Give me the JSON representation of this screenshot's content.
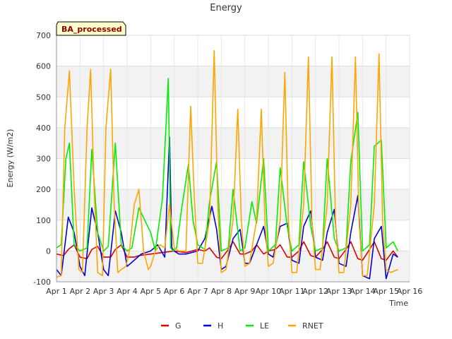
{
  "chart_data": {
    "type": "line",
    "title": "Energy",
    "badge": "BA_processed",
    "xlabel": "Time",
    "ylabel": "Energy (W/m2)",
    "ylim": [
      -100,
      700
    ],
    "xlim": [
      1,
      16
    ],
    "y_ticks": [
      -100,
      0,
      100,
      200,
      300,
      400,
      500,
      600,
      700
    ],
    "x_ticks": [
      {
        "value": 1,
        "label": "Apr 1"
      },
      {
        "value": 2,
        "label": "Apr 2"
      },
      {
        "value": 3,
        "label": "Apr 3"
      },
      {
        "value": 4,
        "label": "Apr 4"
      },
      {
        "value": 5,
        "label": "Apr 5"
      },
      {
        "value": 6,
        "label": "Apr 6"
      },
      {
        "value": 7,
        "label": "Apr 7"
      },
      {
        "value": 8,
        "label": "Apr 8"
      },
      {
        "value": 9,
        "label": "Apr 9"
      },
      {
        "value": 10,
        "label": "Apr 10"
      },
      {
        "value": 11,
        "label": "Apr 11"
      },
      {
        "value": 12,
        "label": "Apr 12"
      },
      {
        "value": 13,
        "label": "Apr 13"
      },
      {
        "value": 14,
        "label": "Apr 14"
      },
      {
        "value": 15,
        "label": "Apr 15"
      },
      {
        "value": 16,
        "label": "Apr 16"
      }
    ],
    "grid": true,
    "legend_position": "bottom-center",
    "x_unit": "day of April",
    "series": [
      {
        "name": "G",
        "color": "#dd0000",
        "x": [
          1.0,
          1.3,
          1.5,
          1.75,
          2.0,
          2.3,
          2.5,
          2.75,
          3.0,
          3.3,
          3.5,
          3.75,
          4.0,
          4.3,
          4.5,
          5.0,
          5.5,
          6.0,
          6.5,
          7.0,
          7.3,
          7.5,
          7.8,
          8.0,
          8.3,
          8.5,
          8.8,
          9.0,
          9.3,
          9.5,
          9.8,
          10.0,
          10.3,
          10.5,
          10.8,
          11.0,
          11.3,
          11.5,
          11.8,
          12.0,
          12.3,
          12.5,
          12.8,
          13.0,
          13.3,
          13.5,
          13.8,
          14.0,
          14.3,
          14.5,
          14.8,
          15.0,
          15.3,
          15.5
        ],
        "y": [
          -10,
          -15,
          5,
          20,
          -20,
          -25,
          5,
          15,
          -20,
          -20,
          5,
          20,
          -20,
          -20,
          -15,
          -10,
          -5,
          0,
          -5,
          5,
          0,
          10,
          -20,
          -25,
          5,
          30,
          -10,
          -10,
          0,
          20,
          -10,
          0,
          5,
          20,
          -20,
          -20,
          0,
          30,
          -15,
          -20,
          5,
          30,
          -20,
          -25,
          5,
          30,
          -25,
          -30,
          5,
          30,
          -25,
          -30,
          0,
          -20
        ]
      },
      {
        "name": "H",
        "color": "#0000dd",
        "x": [
          1.0,
          1.2,
          1.5,
          1.75,
          2.0,
          2.2,
          2.5,
          2.75,
          3.0,
          3.2,
          3.5,
          3.75,
          4.0,
          4.3,
          4.6,
          5.0,
          5.3,
          5.6,
          5.8,
          5.9,
          6.0,
          6.2,
          6.5,
          7.0,
          7.3,
          7.6,
          7.8,
          8.0,
          8.2,
          8.5,
          8.8,
          9.0,
          9.2,
          9.5,
          9.8,
          10.0,
          10.2,
          10.5,
          10.8,
          11.0,
          11.3,
          11.5,
          11.8,
          12.0,
          12.3,
          12.5,
          12.8,
          13.0,
          13.3,
          13.5,
          13.8,
          14.0,
          14.3,
          14.5,
          14.8,
          15.0,
          15.3,
          15.5
        ],
        "y": [
          -60,
          -80,
          110,
          60,
          -50,
          -80,
          140,
          60,
          -60,
          -80,
          130,
          60,
          -50,
          -30,
          -10,
          0,
          20,
          -20,
          370,
          10,
          0,
          -10,
          -10,
          0,
          40,
          145,
          70,
          -60,
          -50,
          40,
          70,
          -40,
          -40,
          20,
          80,
          -10,
          -20,
          80,
          90,
          -30,
          -40,
          80,
          130,
          -20,
          -30,
          60,
          135,
          -40,
          -50,
          60,
          180,
          -80,
          -90,
          40,
          80,
          -90,
          -10,
          -20
        ]
      },
      {
        "name": "LE",
        "color": "#00ee00",
        "x": [
          1.0,
          1.2,
          1.4,
          1.55,
          1.75,
          2.0,
          2.3,
          2.5,
          2.75,
          3.0,
          3.2,
          3.5,
          3.75,
          4.0,
          4.2,
          4.5,
          4.75,
          5.0,
          5.2,
          5.5,
          5.75,
          5.85,
          5.95,
          6.1,
          6.3,
          6.6,
          6.8,
          7.0,
          7.3,
          7.5,
          7.8,
          8.0,
          8.3,
          8.5,
          8.8,
          9.0,
          9.3,
          9.5,
          9.8,
          10.0,
          10.3,
          10.5,
          10.8,
          11.0,
          11.3,
          11.5,
          11.8,
          12.0,
          12.3,
          12.5,
          12.8,
          13.0,
          13.3,
          13.5,
          13.8,
          14.0,
          14.3,
          14.5,
          14.8,
          15.0,
          15.3,
          15.5
        ],
        "y": [
          10,
          20,
          300,
          350,
          20,
          0,
          10,
          330,
          60,
          0,
          15,
          350,
          20,
          0,
          10,
          140,
          100,
          60,
          0,
          170,
          560,
          10,
          0,
          10,
          130,
          280,
          100,
          20,
          5,
          160,
          290,
          0,
          10,
          200,
          0,
          10,
          160,
          90,
          300,
          0,
          20,
          270,
          80,
          0,
          20,
          290,
          80,
          0,
          10,
          300,
          40,
          0,
          10,
          290,
          450,
          0,
          20,
          340,
          360,
          10,
          30,
          0
        ]
      },
      {
        "name": "RNET",
        "color": "#ffa500",
        "x": [
          1.0,
          1.2,
          1.35,
          1.55,
          1.75,
          1.95,
          2.1,
          2.3,
          2.45,
          2.6,
          2.75,
          2.95,
          3.1,
          3.3,
          3.45,
          3.6,
          3.75,
          3.95,
          4.1,
          4.3,
          4.5,
          4.7,
          4.9,
          5.0,
          5.2,
          5.4,
          5.6,
          5.8,
          6.0,
          6.2,
          6.5,
          6.7,
          6.85,
          7.0,
          7.2,
          7.5,
          7.7,
          7.85,
          8.0,
          8.2,
          8.5,
          8.7,
          8.85,
          9.0,
          9.2,
          9.5,
          9.7,
          9.85,
          10.0,
          10.2,
          10.5,
          10.7,
          10.85,
          11.0,
          11.2,
          11.5,
          11.7,
          11.85,
          12.0,
          12.2,
          12.5,
          12.7,
          12.85,
          13.0,
          13.2,
          13.5,
          13.7,
          13.85,
          14.0,
          14.2,
          14.5,
          14.7,
          14.85,
          15.0,
          15.2,
          15.5
        ],
        "y": [
          -85,
          -80,
          400,
          585,
          200,
          -60,
          -70,
          400,
          590,
          200,
          -70,
          -80,
          400,
          590,
          150,
          -70,
          -60,
          -50,
          0,
          150,
          200,
          0,
          -60,
          -50,
          0,
          20,
          10,
          150,
          10,
          0,
          0,
          470,
          180,
          -40,
          -40,
          100,
          650,
          150,
          -70,
          -60,
          100,
          460,
          100,
          -50,
          -40,
          100,
          460,
          100,
          -50,
          -40,
          100,
          580,
          100,
          -70,
          -70,
          150,
          630,
          100,
          -60,
          -60,
          150,
          630,
          100,
          -70,
          -70,
          150,
          630,
          100,
          -80,
          -80,
          150,
          640,
          100,
          -60,
          -70,
          -60
        ]
      }
    ]
  }
}
